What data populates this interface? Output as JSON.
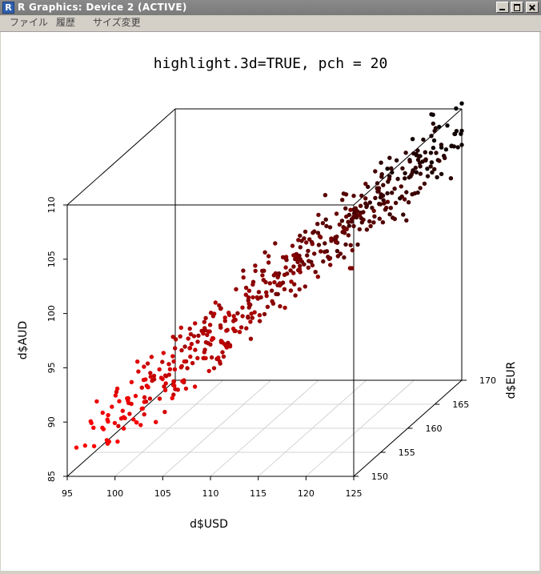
{
  "window": {
    "title": "R Graphics: Device 2 (ACTIVE)",
    "app_icon": "R",
    "buttons": [
      "minimize",
      "maximize",
      "close"
    ]
  },
  "menu": {
    "items": [
      "ファイル",
      "履歴",
      "サイズ変更"
    ]
  },
  "chart_data": {
    "type": "scatter",
    "variant": "3d-scatter",
    "title": "highlight.3d=TRUE, pch = 20",
    "xlabel": "d$USD",
    "ylabel": "d$EUR",
    "zlabel": "d$AUD",
    "xlim": [
      95,
      125
    ],
    "ylim": [
      150,
      170
    ],
    "zlim": [
      85,
      110
    ],
    "x_ticks": [
      "95",
      "100",
      "105",
      "110",
      "115",
      "120",
      "125"
    ],
    "y_ticks": [
      "150",
      "155",
      "160",
      "165",
      "170"
    ],
    "z_ticks": [
      "85",
      "90",
      "95",
      "100",
      "105",
      "110"
    ],
    "highlight_3d": true,
    "color_scale": {
      "near": "#ff0000",
      "far": "#000000"
    },
    "grid": "xy-floor",
    "point_style": "filled-circle"
  }
}
